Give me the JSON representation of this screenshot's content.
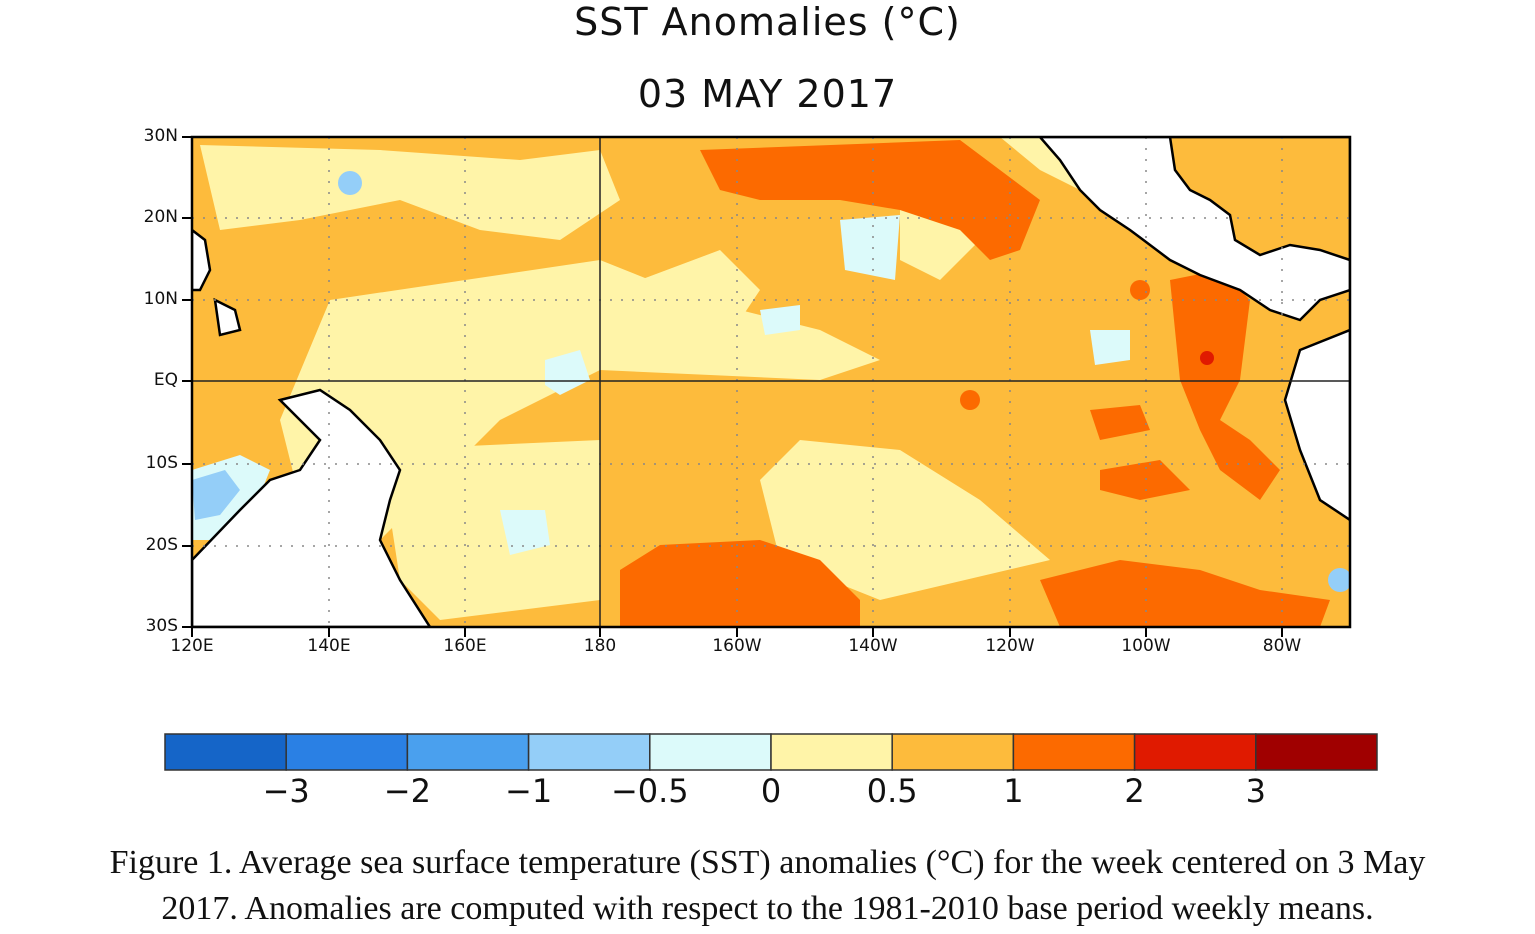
{
  "map": {
    "title": "SST Anomalies (°C)",
    "date": "03 MAY 2017",
    "lat_labels": [
      "30N",
      "20N",
      "10N",
      "EQ",
      "10S",
      "20S",
      "30S"
    ],
    "lon_labels": [
      "120E",
      "140E",
      "160E",
      "180",
      "160W",
      "140W",
      "120W",
      "100W",
      "80W"
    ],
    "colorbar": {
      "colors": [
        "#1565c8",
        "#2a80e4",
        "#4aa0ee",
        "#94cef8",
        "#dcfafa",
        "#fff4a8",
        "#fdbb3c",
        "#fc6a00",
        "#e01a00",
        "#a00000"
      ],
      "labels": [
        "−3",
        "−2",
        "−1",
        "−0.5",
        "0",
        "0.5",
        "1",
        "2",
        "3"
      ]
    },
    "caption_line1": "Figure 1. Average sea surface temperature (SST) anomalies (°C) for the week centered on 3 May",
    "caption_line2": "2017.  Anomalies are computed with respect to the 1981-2010 base period weekly means."
  }
}
